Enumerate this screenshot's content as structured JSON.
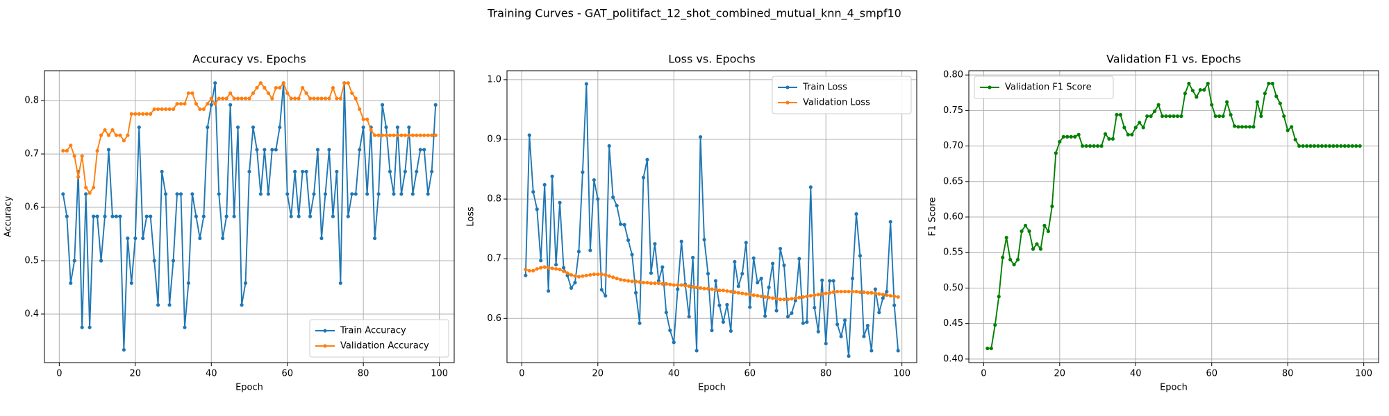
{
  "title": "Training Curves - GAT_politifact_12_shot_combined_mutual_knn_4_smpf10",
  "chart_data": [
    {
      "type": "line",
      "title": "Accuracy vs. Epochs",
      "xlabel": "Epoch",
      "ylabel": "Accuracy",
      "grid": true,
      "legend": "lower right",
      "xlim": [
        -3.9,
        103.9
      ],
      "xticks": [
        0,
        20,
        40,
        60,
        80,
        100
      ],
      "ylim": [
        0.309,
        0.856
      ],
      "yticks": [
        0.4,
        0.5,
        0.6,
        0.7,
        0.8
      ],
      "x": [
        1,
        2,
        3,
        4,
        5,
        6,
        7,
        8,
        9,
        10,
        11,
        12,
        13,
        14,
        15,
        16,
        17,
        18,
        19,
        20,
        21,
        22,
        23,
        24,
        25,
        26,
        27,
        28,
        29,
        30,
        31,
        32,
        33,
        34,
        35,
        36,
        37,
        38,
        39,
        40,
        41,
        42,
        43,
        44,
        45,
        46,
        47,
        48,
        49,
        50,
        51,
        52,
        53,
        54,
        55,
        56,
        57,
        58,
        59,
        60,
        61,
        62,
        63,
        64,
        65,
        66,
        67,
        68,
        69,
        70,
        71,
        72,
        73,
        74,
        75,
        76,
        77,
        78,
        79,
        80,
        81,
        82,
        83,
        84,
        85,
        86,
        87,
        88,
        89,
        90,
        91,
        92,
        93,
        94,
        95,
        96,
        97,
        98,
        99
      ],
      "series": [
        {
          "name": "Train Accuracy",
          "color": "#1f77b4",
          "values": [
            0.625,
            0.583,
            0.458,
            0.5,
            0.667,
            0.375,
            0.625,
            0.375,
            0.583,
            0.583,
            0.5,
            0.583,
            0.708,
            0.583,
            0.583,
            0.583,
            0.333,
            0.542,
            0.458,
            0.542,
            0.75,
            0.542,
            0.583,
            0.583,
            0.5,
            0.417,
            0.667,
            0.625,
            0.417,
            0.5,
            0.625,
            0.625,
            0.375,
            0.458,
            0.625,
            0.583,
            0.542,
            0.583,
            0.75,
            0.792,
            0.833,
            0.625,
            0.542,
            0.583,
            0.792,
            0.583,
            0.75,
            0.417,
            0.458,
            0.667,
            0.75,
            0.708,
            0.625,
            0.708,
            0.625,
            0.708,
            0.708,
            0.75,
            0.833,
            0.625,
            0.583,
            0.667,
            0.583,
            0.667,
            0.667,
            0.583,
            0.625,
            0.708,
            0.542,
            0.625,
            0.708,
            0.583,
            0.667,
            0.458,
            0.833,
            0.583,
            0.625,
            0.625,
            0.708,
            0.75,
            0.625,
            0.75,
            0.542,
            0.625,
            0.792,
            0.75,
            0.667,
            0.625,
            0.75,
            0.625,
            0.667,
            0.75,
            0.625,
            0.667,
            0.708,
            0.708,
            0.625,
            0.667,
            0.792
          ]
        },
        {
          "name": "Validation Accuracy",
          "color": "#ff7f0e",
          "values": [
            0.706,
            0.706,
            0.716,
            0.696,
            0.657,
            0.696,
            0.637,
            0.627,
            0.637,
            0.706,
            0.735,
            0.745,
            0.735,
            0.745,
            0.735,
            0.735,
            0.725,
            0.735,
            0.775,
            0.775,
            0.775,
            0.775,
            0.775,
            0.775,
            0.784,
            0.784,
            0.784,
            0.784,
            0.784,
            0.784,
            0.794,
            0.794,
            0.794,
            0.814,
            0.814,
            0.794,
            0.784,
            0.784,
            0.794,
            0.804,
            0.794,
            0.804,
            0.804,
            0.804,
            0.814,
            0.804,
            0.804,
            0.804,
            0.804,
            0.804,
            0.814,
            0.824,
            0.833,
            0.824,
            0.814,
            0.804,
            0.824,
            0.824,
            0.833,
            0.814,
            0.804,
            0.804,
            0.804,
            0.824,
            0.814,
            0.804,
            0.804,
            0.804,
            0.804,
            0.804,
            0.804,
            0.824,
            0.804,
            0.804,
            0.833,
            0.833,
            0.814,
            0.804,
            0.784,
            0.765,
            0.765,
            0.745,
            0.735,
            0.735,
            0.735,
            0.735,
            0.735,
            0.735,
            0.735,
            0.735,
            0.735,
            0.735,
            0.735,
            0.735,
            0.735,
            0.735,
            0.735,
            0.735,
            0.735
          ]
        }
      ]
    },
    {
      "type": "line",
      "title": "Loss vs. Epochs",
      "xlabel": "Epoch",
      "ylabel": "Loss",
      "grid": true,
      "legend": "upper right",
      "xlim": [
        -3.9,
        103.9
      ],
      "xticks": [
        0,
        20,
        40,
        60,
        80,
        100
      ],
      "ylim": [
        0.526,
        1.015
      ],
      "yticks": [
        0.6,
        0.7,
        0.8,
        0.9,
        {
          "value": 1.0,
          "label": "1.0"
        }
      ],
      "x": [
        1,
        2,
        3,
        4,
        5,
        6,
        7,
        8,
        9,
        10,
        11,
        12,
        13,
        14,
        15,
        16,
        17,
        18,
        19,
        20,
        21,
        22,
        23,
        24,
        25,
        26,
        27,
        28,
        29,
        30,
        31,
        32,
        33,
        34,
        35,
        36,
        37,
        38,
        39,
        40,
        41,
        42,
        43,
        44,
        45,
        46,
        47,
        48,
        49,
        50,
        51,
        52,
        53,
        54,
        55,
        56,
        57,
        58,
        59,
        60,
        61,
        62,
        63,
        64,
        65,
        66,
        67,
        68,
        69,
        70,
        71,
        72,
        73,
        74,
        75,
        76,
        77,
        78,
        79,
        80,
        81,
        82,
        83,
        84,
        85,
        86,
        87,
        88,
        89,
        90,
        91,
        92,
        93,
        94,
        95,
        96,
        97,
        98,
        99
      ],
      "series": [
        {
          "name": "Train Loss",
          "color": "#1f77b4",
          "values": [
            0.672,
            0.907,
            0.812,
            0.783,
            0.697,
            0.824,
            0.646,
            0.838,
            0.69,
            0.794,
            0.685,
            0.672,
            0.651,
            0.66,
            0.712,
            0.845,
            0.993,
            0.714,
            0.832,
            0.8,
            0.648,
            0.638,
            0.889,
            0.803,
            0.789,
            0.758,
            0.757,
            0.731,
            0.707,
            0.643,
            0.592,
            0.836,
            0.866,
            0.676,
            0.725,
            0.663,
            0.686,
            0.61,
            0.58,
            0.56,
            0.649,
            0.729,
            0.657,
            0.603,
            0.702,
            0.546,
            0.904,
            0.732,
            0.675,
            0.58,
            0.663,
            0.622,
            0.594,
            0.623,
            0.579,
            0.695,
            0.654,
            0.675,
            0.727,
            0.619,
            0.701,
            0.66,
            0.667,
            0.604,
            0.652,
            0.692,
            0.613,
            0.717,
            0.689,
            0.603,
            0.609,
            0.63,
            0.7,
            0.592,
            0.594,
            0.82,
            0.618,
            0.578,
            0.664,
            0.558,
            0.663,
            0.663,
            0.59,
            0.57,
            0.597,
            0.537,
            0.667,
            0.775,
            0.705,
            0.57,
            0.588,
            0.546,
            0.649,
            0.61,
            0.634,
            0.645,
            0.762,
            0.622,
            0.546
          ]
        },
        {
          "name": "Validation Loss",
          "color": "#ff7f0e",
          "values": [
            0.682,
            0.68,
            0.68,
            0.683,
            0.685,
            0.686,
            0.685,
            0.684,
            0.683,
            0.682,
            0.679,
            0.676,
            0.673,
            0.671,
            0.67,
            0.671,
            0.672,
            0.673,
            0.674,
            0.674,
            0.674,
            0.673,
            0.671,
            0.669,
            0.667,
            0.665,
            0.664,
            0.663,
            0.662,
            0.662,
            0.661,
            0.66,
            0.66,
            0.659,
            0.659,
            0.659,
            0.658,
            0.658,
            0.657,
            0.656,
            0.656,
            0.656,
            0.655,
            0.654,
            0.653,
            0.652,
            0.651,
            0.65,
            0.65,
            0.649,
            0.648,
            0.647,
            0.647,
            0.646,
            0.645,
            0.644,
            0.643,
            0.642,
            0.641,
            0.64,
            0.639,
            0.638,
            0.637,
            0.636,
            0.635,
            0.634,
            0.633,
            0.632,
            0.632,
            0.632,
            0.633,
            0.634,
            0.635,
            0.636,
            0.637,
            0.638,
            0.639,
            0.64,
            0.641,
            0.642,
            0.643,
            0.644,
            0.645,
            0.645,
            0.645,
            0.645,
            0.645,
            0.645,
            0.644,
            0.644,
            0.643,
            0.643,
            0.642,
            0.641,
            0.64,
            0.639,
            0.638,
            0.637,
            0.636
          ]
        }
      ]
    },
    {
      "type": "line",
      "title": "Validation F1 vs. Epochs",
      "xlabel": "Epoch",
      "ylabel": "F1 Score",
      "grid": true,
      "legend": "upper left",
      "xlim": [
        -3.9,
        103.9
      ],
      "xticks": [
        0,
        20,
        40,
        60,
        80,
        100
      ],
      "ylim": [
        0.395,
        0.806
      ],
      "yticks": [
        {
          "value": 0.4,
          "label": "0.40"
        },
        {
          "value": 0.45,
          "label": "0.45"
        },
        {
          "value": 0.5,
          "label": "0.50"
        },
        {
          "value": 0.55,
          "label": "0.55"
        },
        {
          "value": 0.6,
          "label": "0.60"
        },
        {
          "value": 0.65,
          "label": "0.65"
        },
        {
          "value": 0.7,
          "label": "0.70"
        },
        {
          "value": 0.75,
          "label": "0.75"
        },
        {
          "value": 0.8,
          "label": "0.80"
        }
      ],
      "x": [
        1,
        2,
        3,
        4,
        5,
        6,
        7,
        8,
        9,
        10,
        11,
        12,
        13,
        14,
        15,
        16,
        17,
        18,
        19,
        20,
        21,
        22,
        23,
        24,
        25,
        26,
        27,
        28,
        29,
        30,
        31,
        32,
        33,
        34,
        35,
        36,
        37,
        38,
        39,
        40,
        41,
        42,
        43,
        44,
        45,
        46,
        47,
        48,
        49,
        50,
        51,
        52,
        53,
        54,
        55,
        56,
        57,
        58,
        59,
        60,
        61,
        62,
        63,
        64,
        65,
        66,
        67,
        68,
        69,
        70,
        71,
        72,
        73,
        74,
        75,
        76,
        77,
        78,
        79,
        80,
        81,
        82,
        83,
        84,
        85,
        86,
        87,
        88,
        89,
        90,
        91,
        92,
        93,
        94,
        95,
        96,
        97,
        98,
        99
      ],
      "series": [
        {
          "name": "Validation F1 Score",
          "color": "#008000",
          "values": [
            0.415,
            0.415,
            0.448,
            0.488,
            0.543,
            0.571,
            0.54,
            0.533,
            0.54,
            0.58,
            0.588,
            0.58,
            0.555,
            0.562,
            0.555,
            0.588,
            0.58,
            0.615,
            0.69,
            0.706,
            0.713,
            0.713,
            0.713,
            0.713,
            0.716,
            0.7,
            0.7,
            0.7,
            0.7,
            0.7,
            0.7,
            0.717,
            0.71,
            0.71,
            0.744,
            0.744,
            0.726,
            0.716,
            0.716,
            0.726,
            0.733,
            0.726,
            0.742,
            0.742,
            0.749,
            0.758,
            0.742,
            0.742,
            0.742,
            0.742,
            0.742,
            0.742,
            0.774,
            0.788,
            0.778,
            0.769,
            0.779,
            0.779,
            0.788,
            0.758,
            0.742,
            0.742,
            0.742,
            0.762,
            0.744,
            0.728,
            0.727,
            0.727,
            0.727,
            0.727,
            0.727,
            0.762,
            0.742,
            0.774,
            0.788,
            0.788,
            0.77,
            0.76,
            0.742,
            0.722,
            0.727,
            0.709,
            0.7,
            0.7,
            0.7,
            0.7,
            0.7,
            0.7,
            0.7,
            0.7,
            0.7,
            0.7,
            0.7,
            0.7,
            0.7,
            0.7,
            0.7,
            0.7,
            0.7
          ]
        }
      ]
    }
  ]
}
